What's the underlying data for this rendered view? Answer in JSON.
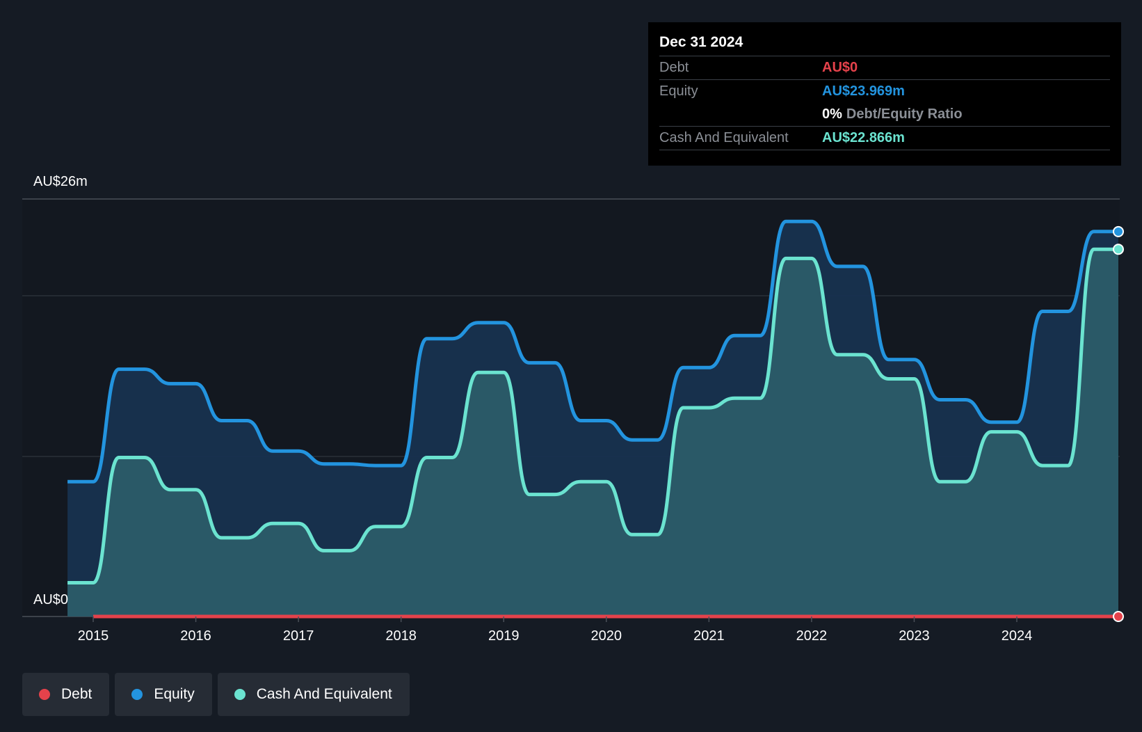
{
  "colors": {
    "debt": "#e5424b",
    "equity": "#2394df",
    "cash": "#6be3d0"
  },
  "tooltip": {
    "date": "Dec 31 2024",
    "debt_label": "Debt",
    "debt_value": "AU$0",
    "equity_label": "Equity",
    "equity_value": "AU$23.969m",
    "ratio_value": "0%",
    "ratio_label": "Debt/Equity Ratio",
    "cash_label": "Cash And Equivalent",
    "cash_value": "AU$22.866m"
  },
  "legend": [
    {
      "name": "debt-legend",
      "label": "Debt",
      "color": "#e5424b"
    },
    {
      "name": "equity-legend",
      "label": "Equity",
      "color": "#2394df"
    },
    {
      "name": "cash-legend",
      "label": "Cash And Equivalent",
      "color": "#6be3d0"
    }
  ],
  "chart_data": {
    "type": "area",
    "ylim": [
      0,
      26
    ],
    "ytick_labels": {
      "top": "AU$26m",
      "bottom": "AU$0"
    },
    "xticks": [
      "2015",
      "2016",
      "2017",
      "2018",
      "2019",
      "2020",
      "2021",
      "2022",
      "2023",
      "2024"
    ],
    "series": [
      {
        "name": "Equity",
        "x": [
          2014.75,
          2015.0,
          2015.25,
          2015.5,
          2015.75,
          2016.0,
          2016.25,
          2016.5,
          2016.75,
          2017.0,
          2017.25,
          2017.5,
          2017.75,
          2018.0,
          2018.25,
          2018.5,
          2018.75,
          2019.0,
          2019.25,
          2019.5,
          2019.75,
          2020.0,
          2020.25,
          2020.5,
          2020.75,
          2021.0,
          2021.25,
          2021.5,
          2021.75,
          2022.0,
          2022.25,
          2022.5,
          2022.75,
          2023.0,
          2023.25,
          2023.5,
          2023.75,
          2024.0,
          2024.25,
          2024.5,
          2024.75,
          2025.0
        ],
        "values": [
          8.4,
          8.4,
          15.4,
          15.4,
          14.5,
          14.5,
          12.2,
          12.2,
          10.3,
          10.3,
          9.5,
          9.5,
          9.4,
          9.4,
          17.3,
          17.3,
          18.3,
          18.3,
          15.8,
          15.8,
          12.2,
          12.2,
          11.0,
          11.0,
          15.5,
          15.5,
          17.5,
          17.5,
          24.6,
          24.6,
          21.8,
          21.8,
          16.0,
          16.0,
          13.5,
          13.5,
          12.1,
          12.1,
          19.0,
          19.0,
          23.97,
          23.97
        ]
      },
      {
        "name": "Cash And Equivalent",
        "x": [
          2014.75,
          2015.0,
          2015.25,
          2015.5,
          2015.75,
          2016.0,
          2016.25,
          2016.5,
          2016.75,
          2017.0,
          2017.25,
          2017.5,
          2017.75,
          2018.0,
          2018.25,
          2018.5,
          2018.75,
          2019.0,
          2019.25,
          2019.5,
          2019.75,
          2020.0,
          2020.25,
          2020.5,
          2020.75,
          2021.0,
          2021.25,
          2021.5,
          2021.75,
          2022.0,
          2022.25,
          2022.5,
          2022.75,
          2023.0,
          2023.25,
          2023.5,
          2023.75,
          2024.0,
          2024.25,
          2024.5,
          2024.75,
          2025.0
        ],
        "values": [
          2.1,
          2.1,
          9.9,
          9.9,
          7.9,
          7.9,
          4.9,
          4.9,
          5.8,
          5.8,
          4.1,
          4.1,
          5.6,
          5.6,
          9.9,
          9.9,
          15.2,
          15.2,
          7.6,
          7.6,
          8.4,
          8.4,
          5.1,
          5.1,
          13.0,
          13.0,
          13.6,
          13.6,
          22.3,
          22.3,
          16.3,
          16.3,
          14.8,
          14.8,
          8.4,
          8.4,
          11.5,
          11.5,
          9.4,
          9.4,
          22.87,
          22.87
        ]
      },
      {
        "name": "Debt",
        "x": [
          2015.0,
          2025.0
        ],
        "values": [
          0,
          0
        ]
      }
    ]
  }
}
